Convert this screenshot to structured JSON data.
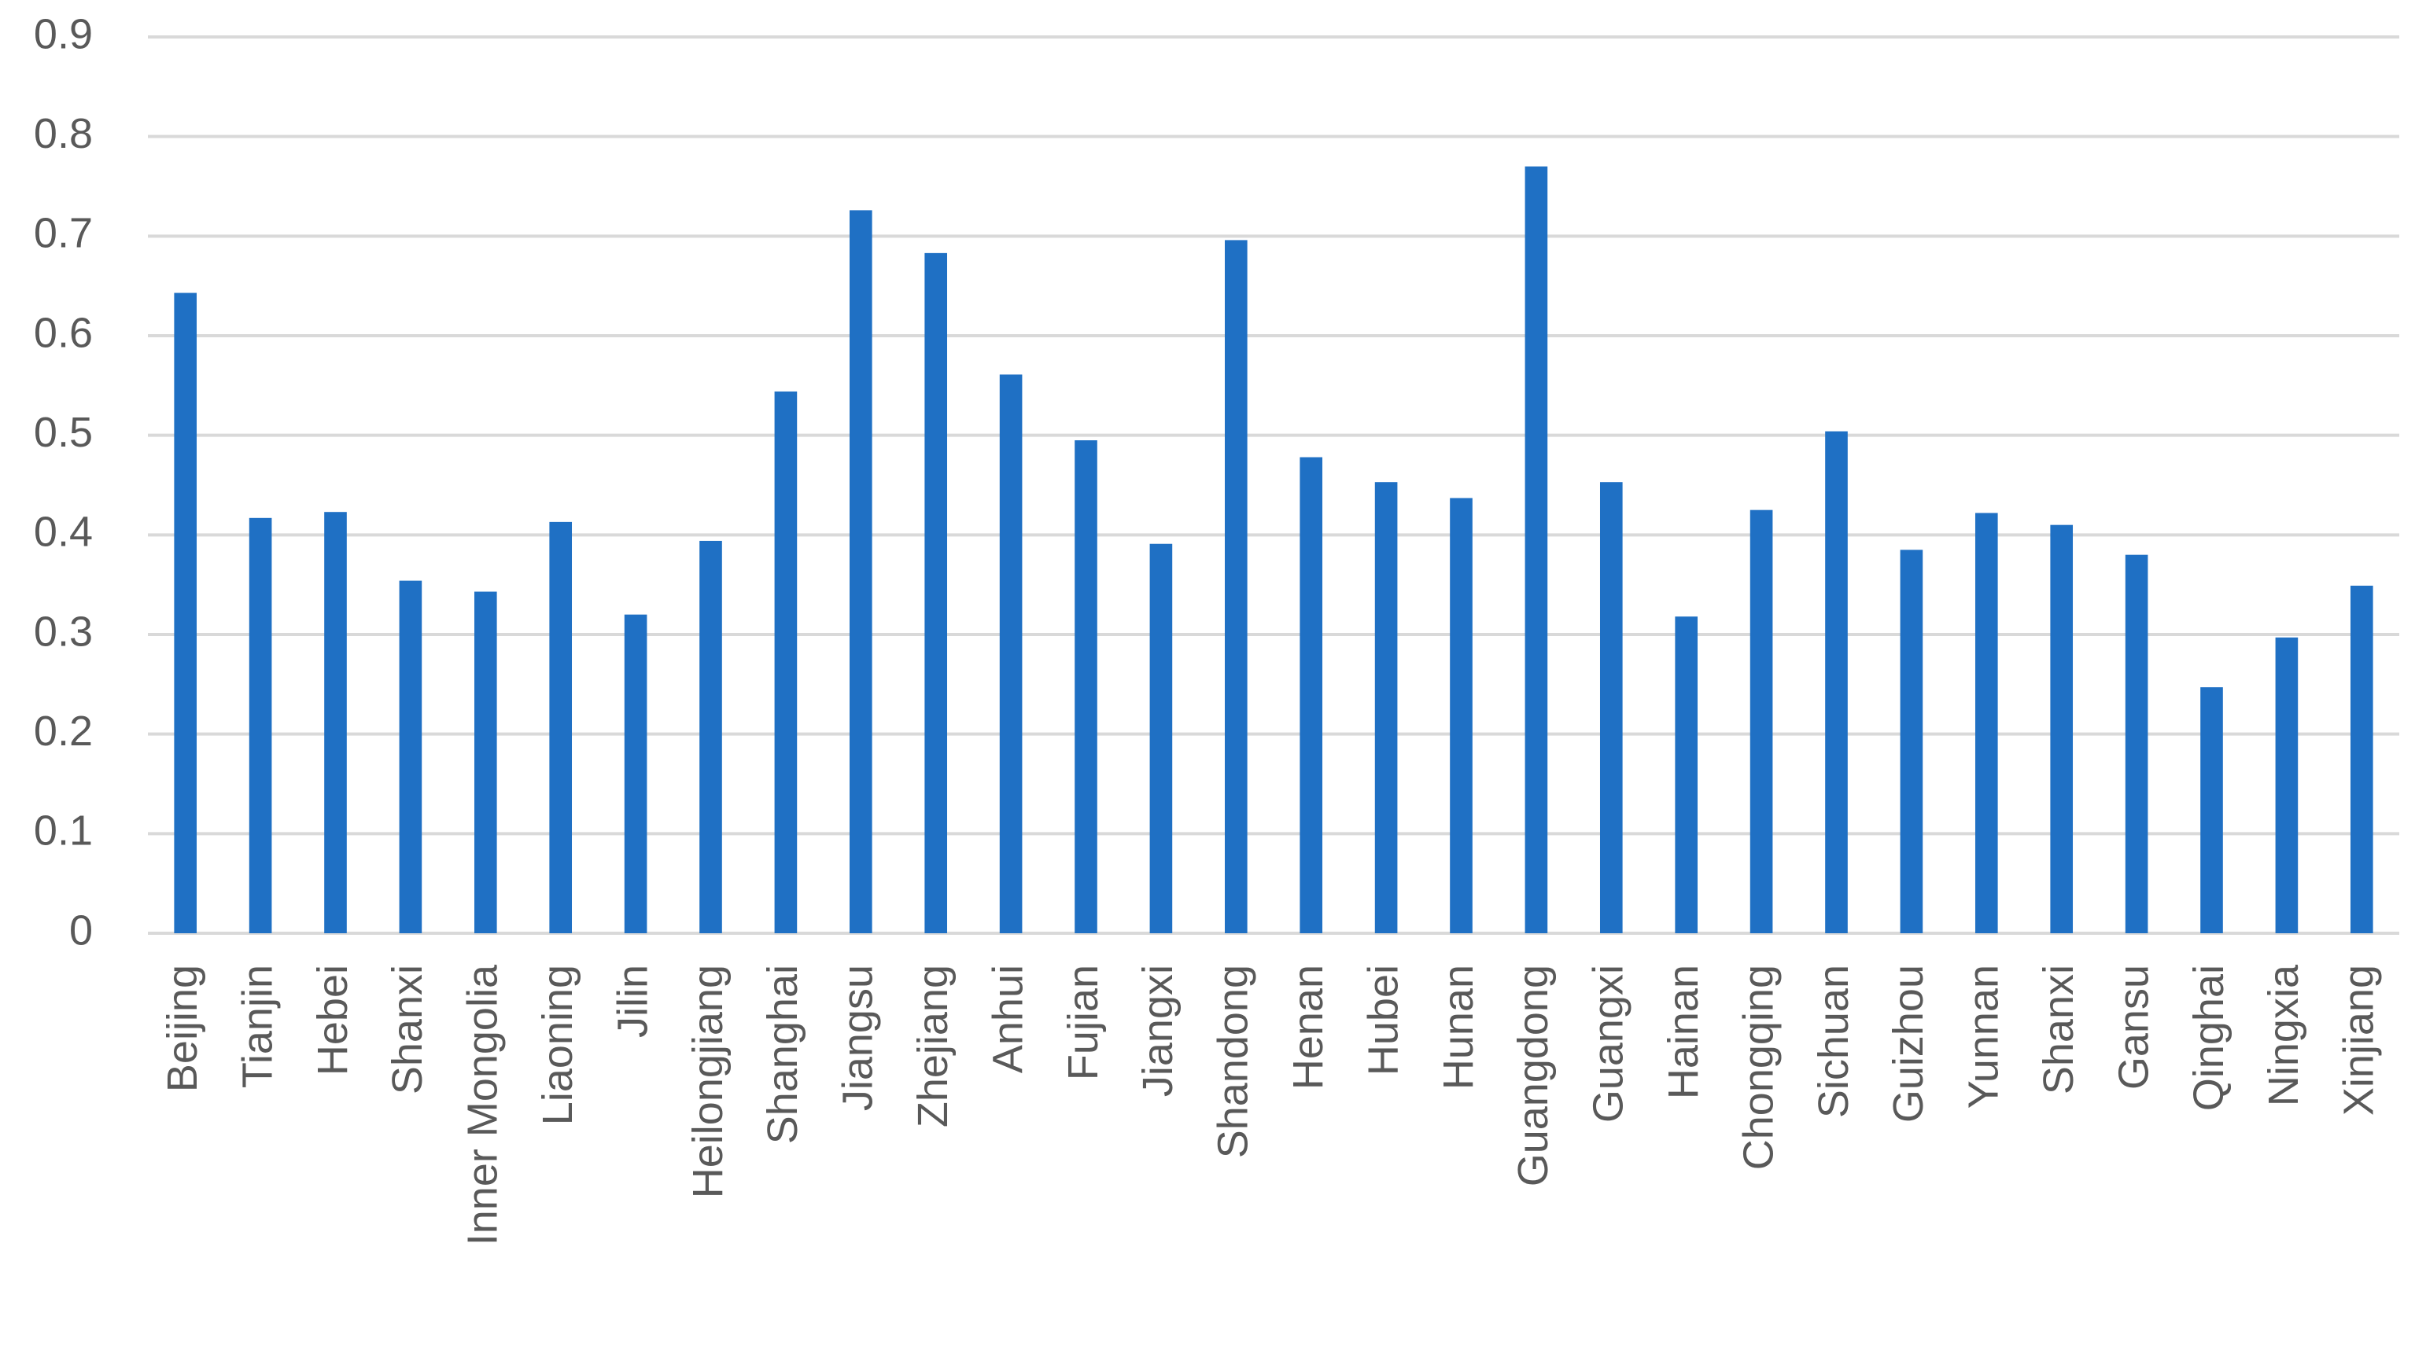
{
  "chart_data": {
    "type": "bar",
    "categories": [
      "Beijing",
      "Tianjin",
      "Hebei",
      "Shanxi",
      "Inner Mongolia",
      "Liaoning",
      "Jilin",
      "Heilongjiang",
      "Shanghai",
      "Jiangsu",
      "Zhejiang",
      "Anhui",
      "Fujian",
      "Jiangxi",
      "Shandong",
      "Henan",
      "Hubei",
      "Hunan",
      "Guangdong",
      "Guangxi",
      "Hainan",
      "Chongqing",
      "Sichuan",
      "Guizhou",
      "Yunnan",
      "Shanxi",
      "Gansu",
      "Qinghai",
      "Ningxia",
      "Xinjiang"
    ],
    "values": [
      0.643,
      0.417,
      0.423,
      0.354,
      0.343,
      0.413,
      0.32,
      0.394,
      0.544,
      0.726,
      0.683,
      0.561,
      0.495,
      0.391,
      0.696,
      0.478,
      0.453,
      0.437,
      0.77,
      0.453,
      0.318,
      0.425,
      0.504,
      0.385,
      0.422,
      0.41,
      0.38,
      0.247,
      0.297,
      0.349
    ],
    "color": "#1f70c4",
    "ylim": [
      0,
      0.9
    ],
    "yticks": [
      0,
      0.1,
      0.2,
      0.3,
      0.4,
      0.5,
      0.6,
      0.7,
      0.8,
      0.9
    ],
    "grid": true
  }
}
